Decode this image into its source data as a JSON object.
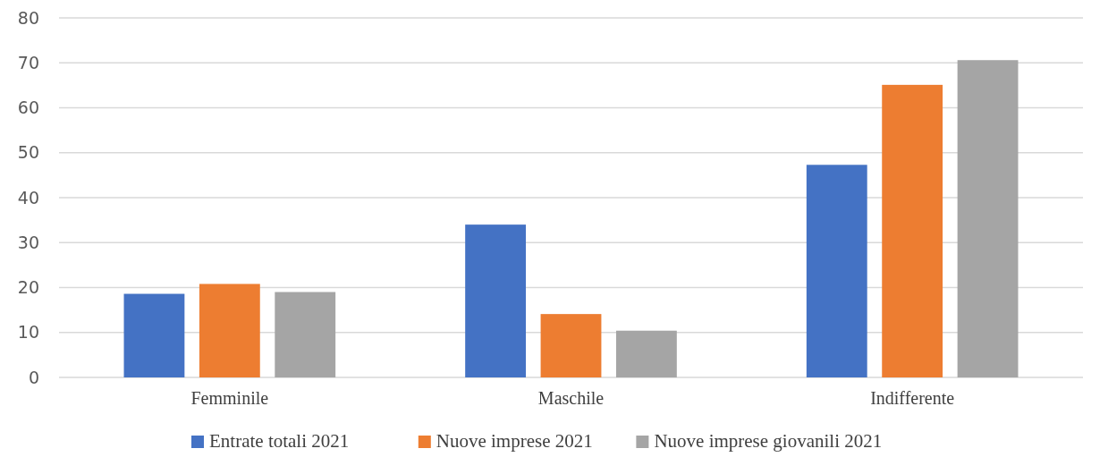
{
  "chart_data": {
    "type": "bar",
    "categories": [
      "Femminile",
      "Maschile",
      "Indifferente"
    ],
    "series": [
      {
        "name": "Entrate totali 2021",
        "color": "#4472c4",
        "values": [
          18.6,
          34.0,
          47.3
        ]
      },
      {
        "name": "Nuove imprese 2021",
        "color": "#ed7d31",
        "values": [
          20.8,
          14.1,
          65.1
        ]
      },
      {
        "name": "Nuove imprese giovanili 2021",
        "color": "#a5a5a5",
        "values": [
          19.0,
          10.4,
          70.6
        ]
      }
    ],
    "ylim": [
      0,
      80
    ],
    "yticks": [
      0,
      10,
      20,
      30,
      40,
      50,
      60,
      70,
      80
    ],
    "grid": "y",
    "legend": "bottom"
  }
}
